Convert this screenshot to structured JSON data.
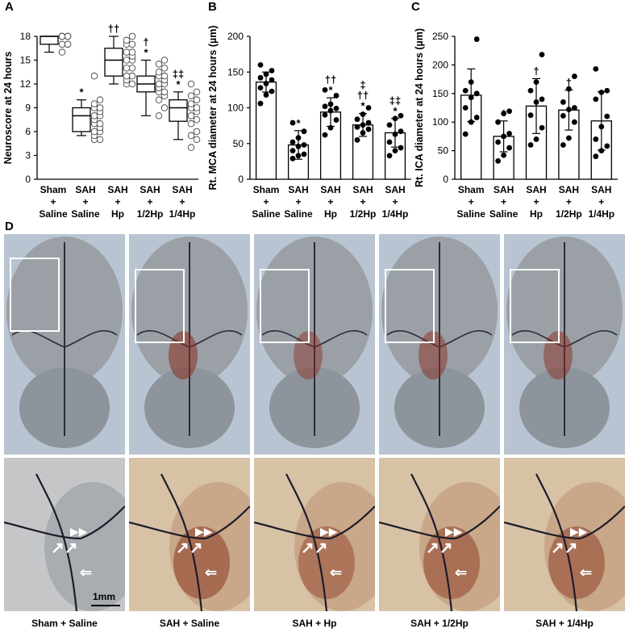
{
  "panel_labels": {
    "a": "A",
    "b": "B",
    "c": "C",
    "d": "D"
  },
  "chart_data": [
    {
      "type": "box",
      "panel": "A",
      "ylabel": "Neuroscore at 24 hours",
      "ylim": [
        0,
        18
      ],
      "yticks": [
        "0",
        "3",
        "6",
        "9",
        "12",
        "15",
        "18"
      ],
      "categories": [
        {
          "top": "Sham",
          "mid": "+",
          "bottom": "Saline"
        },
        {
          "top": "SAH",
          "mid": "+",
          "bottom": "Saline"
        },
        {
          "top": "SAH",
          "mid": "+",
          "bottom": "Hp"
        },
        {
          "top": "SAH",
          "mid": "+",
          "bottom": "1/2Hp"
        },
        {
          "top": "SAH",
          "mid": "+",
          "bottom": "1/4Hp"
        }
      ],
      "boxes": [
        {
          "min": 16,
          "q1": 17,
          "median": 18,
          "q3": 18,
          "max": 18
        },
        {
          "min": 5.5,
          "q1": 6,
          "median": 8,
          "q3": 9,
          "max": 10
        },
        {
          "min": 12,
          "q1": 13,
          "median": 15,
          "q3": 16.5,
          "max": 18
        },
        {
          "min": 8,
          "q1": 11,
          "median": 12,
          "q3": 13,
          "max": 15
        },
        {
          "min": 5,
          "q1": 7.3,
          "median": 9,
          "q3": 10,
          "max": 11
        }
      ],
      "points": [
        [
          16,
          17,
          17,
          17,
          18,
          18,
          18,
          18,
          18,
          18,
          18,
          18,
          18
        ],
        [
          5,
          5,
          5.5,
          6,
          6,
          6.5,
          7,
          7,
          7.5,
          8,
          8,
          8.5,
          9,
          9,
          9.5,
          10,
          13
        ],
        [
          12,
          12,
          12.5,
          13,
          13,
          14,
          14,
          15,
          15,
          15.5,
          16,
          16,
          17,
          17,
          17.5,
          18
        ],
        [
          8,
          9,
          10,
          10.5,
          11,
          11,
          11.5,
          12,
          12,
          12.5,
          13,
          13,
          13.5,
          14,
          14.5,
          15
        ],
        [
          4,
          5,
          5.5,
          6,
          7,
          7.5,
          8,
          8.5,
          9,
          9,
          9.5,
          10,
          10.5,
          11,
          12
        ]
      ],
      "annotations": [
        "",
        "*",
        "††",
        "†\n*",
        "‡‡\n*"
      ]
    },
    {
      "type": "bar",
      "panel": "B",
      "ylabel": "Rt. MCA diameter at 24 hours (µm)",
      "ylim": [
        0,
        200
      ],
      "yticks": [
        "0",
        "50",
        "100",
        "150",
        "200"
      ],
      "categories": [
        {
          "top": "Sham",
          "mid": "+",
          "bottom": "Saline"
        },
        {
          "top": "SAH",
          "mid": "+",
          "bottom": "Saline"
        },
        {
          "top": "SAH",
          "mid": "+",
          "bottom": "Hp"
        },
        {
          "top": "SAH",
          "mid": "+",
          "bottom": "1/2Hp"
        },
        {
          "top": "SAH",
          "mid": "+",
          "bottom": "1/4Hp"
        }
      ],
      "values": [
        136,
        48,
        94,
        76,
        65
      ],
      "errors": [
        14,
        20,
        20,
        16,
        20
      ],
      "points": [
        [
          106,
          118,
          123,
          128,
          134,
          139,
          142,
          147,
          152,
          160
        ],
        [
          29,
          33,
          35,
          40,
          46,
          48,
          52,
          58,
          67,
          79
        ],
        [
          62,
          72,
          83,
          90,
          96,
          99,
          102,
          105,
          117,
          125
        ],
        [
          55,
          65,
          70,
          73,
          76,
          79,
          84,
          91,
          100
        ],
        [
          33,
          40,
          44,
          52,
          63,
          67,
          76,
          85,
          89
        ]
      ],
      "annotations": [
        "",
        "*",
        "††\n*",
        "‡\n††\n*",
        "‡‡\n*"
      ]
    },
    {
      "type": "bar",
      "panel": "C",
      "ylabel": "Rt. ICA diameter at 24 hours (µm)",
      "ylim": [
        0,
        250
      ],
      "yticks": [
        "0",
        "50",
        "100",
        "150",
        "200",
        "250"
      ],
      "categories": [
        {
          "top": "Sham",
          "mid": "+",
          "bottom": "Saline"
        },
        {
          "top": "SAH",
          "mid": "+",
          "bottom": "Saline"
        },
        {
          "top": "SAH",
          "mid": "+",
          "bottom": "Hp"
        },
        {
          "top": "SAH",
          "mid": "+",
          "bottom": "1/2Hp"
        },
        {
          "top": "SAH",
          "mid": "+",
          "bottom": "1/4Hp"
        }
      ],
      "values": [
        147,
        75,
        128,
        121,
        102
      ],
      "errors": [
        46,
        27,
        48,
        35,
        51
      ],
      "points": [
        [
          79,
          100,
          108,
          125,
          143,
          150,
          155,
          170,
          245
        ],
        [
          32,
          42,
          55,
          65,
          75,
          80,
          100,
          115,
          119
        ],
        [
          60,
          70,
          90,
          112,
          135,
          140,
          155,
          170,
          218
        ],
        [
          60,
          72,
          100,
          111,
          122,
          125,
          135,
          158,
          180
        ],
        [
          40,
          50,
          58,
          70,
          92,
          110,
          140,
          152,
          155,
          193
        ]
      ],
      "annotations": [
        "",
        "*",
        "†",
        "†",
        ""
      ]
    }
  ],
  "panel_d": {
    "scale_bar": "1mm",
    "captions": [
      "Sham + Saline",
      "SAH + Saline",
      "SAH + Hp",
      "SAH + 1/2Hp",
      "SAH + 1/4Hp"
    ],
    "blood_opacity": [
      0.0,
      0.55,
      0.45,
      0.5,
      0.5
    ]
  }
}
